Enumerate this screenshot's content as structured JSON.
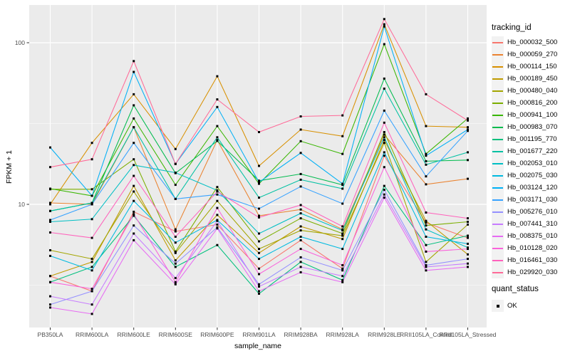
{
  "figure": {
    "background": "#FFFFFF",
    "panel_background": "#EBEBEB",
    "gridline_color": "#FFFFFF",
    "tick_color": "#333333",
    "tick_label_color": "#4D4D4D"
  },
  "chart_data": {
    "type": "line",
    "title": "",
    "xlabel": "sample_name",
    "ylabel": "FPKM + 1",
    "y_scale": "log10",
    "ylim": [
      1.7,
      166
    ],
    "grid": true,
    "legend_position": "right",
    "point_shape": "square",
    "point_color": "#000000",
    "y_ticks": [
      {
        "value": 100,
        "label": "100"
      },
      {
        "value": 10,
        "label": "10"
      }
    ],
    "y_minor_gridlines": [
      31.623,
      3.162
    ],
    "categories": [
      "PB350LA",
      "RRIM600LA",
      "RRIM600LE",
      "RRIM600SE",
      "RRIM600PE",
      "RRIM901LA",
      "RRIM928BA",
      "RRIM928LA",
      "RRIM928LE",
      "RRII105LA_Control",
      "RRII105LA_Stressed"
    ],
    "series": [
      {
        "name": "Hb_000032_500",
        "color": "#F8766D",
        "values": [
          3.6,
          2.9,
          9.0,
          6.8,
          7.5,
          4.0,
          6.0,
          4.0,
          20.0,
          7.7,
          6.2
        ]
      },
      {
        "name": "Hb_000059_270",
        "color": "#EA8331",
        "values": [
          10.2,
          10.0,
          30.0,
          7.0,
          25.0,
          8.5,
          9.3,
          7.0,
          27.0,
          13.3,
          14.4
        ]
      },
      {
        "name": "Hb_000114_150",
        "color": "#D89000",
        "values": [
          10.0,
          24.0,
          48.0,
          22.0,
          62.0,
          17.3,
          29.0,
          26.4,
          130.0,
          30.5,
          30.0
        ]
      },
      {
        "name": "Hb_000189_450",
        "color": "#C09B00",
        "values": [
          3.6,
          4.4,
          13.0,
          4.5,
          8.6,
          5.0,
          7.3,
          6.1,
          25.0,
          7.9,
          4.9
        ]
      },
      {
        "name": "Hb_000480_040",
        "color": "#A3A500",
        "values": [
          5.2,
          4.6,
          12.0,
          5.0,
          10.5,
          5.3,
          6.9,
          6.4,
          24.0,
          4.4,
          7.5
        ]
      },
      {
        "name": "Hb_000816_200",
        "color": "#7CAE00",
        "values": [
          12.4,
          12.4,
          19.0,
          5.1,
          12.8,
          5.9,
          8.2,
          6.6,
          28.0,
          7.4,
          7.8
        ]
      },
      {
        "name": "Hb_000941_100",
        "color": "#39B600",
        "values": [
          12.5,
          11.3,
          34.0,
          13.2,
          30.5,
          13.4,
          24.6,
          20.5,
          98.0,
          20.5,
          34.0
        ]
      },
      {
        "name": "Hb_000983_070",
        "color": "#00BB4E",
        "values": [
          9.1,
          10.2,
          41.0,
          15.6,
          24.7,
          14.0,
          15.4,
          13.2,
          60.0,
          18.5,
          18.8
        ]
      },
      {
        "name": "Hb_001195_770",
        "color": "#00BF7D",
        "values": [
          3.3,
          4.1,
          8.5,
          4.1,
          5.6,
          2.8,
          4.4,
          3.4,
          13.0,
          5.6,
          6.4
        ]
      },
      {
        "name": "Hb_001677_220",
        "color": "#00C1A3",
        "values": [
          9.1,
          10.2,
          30.0,
          10.8,
          26.0,
          11.0,
          14.2,
          12.5,
          52.0,
          17.6,
          21.0
        ]
      },
      {
        "name": "Hb_002053_010",
        "color": "#00BFC4",
        "values": [
          7.8,
          8.1,
          17.5,
          15.7,
          12.2,
          6.6,
          8.8,
          6.9,
          26.0,
          7.0,
          5.4
        ]
      },
      {
        "name": "Hb_002075_030",
        "color": "#00BAE0",
        "values": [
          4.8,
          3.9,
          10.5,
          5.8,
          8.0,
          4.6,
          6.3,
          5.3,
          21.0,
          6.3,
          5.7
        ]
      },
      {
        "name": "Hb_003124_120",
        "color": "#00B0F6",
        "values": [
          22.5,
          11.3,
          66.0,
          17.8,
          40.0,
          13.7,
          20.8,
          13.4,
          126.0,
          20.0,
          29.0
        ]
      },
      {
        "name": "Hb_003171_030",
        "color": "#35A2FF",
        "values": [
          8.0,
          10.0,
          24.0,
          10.8,
          11.5,
          9.4,
          12.9,
          10.1,
          38.0,
          14.9,
          28.5
        ]
      },
      {
        "name": "Hb_005276_010",
        "color": "#9590FF",
        "values": [
          2.4,
          2.9,
          7.4,
          4.3,
          7.2,
          3.2,
          4.7,
          3.9,
          12.3,
          4.2,
          4.6
        ]
      },
      {
        "name": "Hb_007441_310",
        "color": "#C77CFF",
        "values": [
          2.7,
          2.4,
          6.6,
          3.5,
          7.9,
          3.1,
          4.1,
          3.6,
          11.5,
          4.1,
          4.3
        ]
      },
      {
        "name": "Hb_008375_010",
        "color": "#E76BF3",
        "values": [
          2.3,
          2.1,
          6.0,
          3.2,
          7.1,
          2.9,
          3.8,
          3.3,
          11.0,
          3.9,
          4.1
        ]
      },
      {
        "name": "Hb_010128_020",
        "color": "#FA62DB",
        "values": [
          3.3,
          3.0,
          8.7,
          3.3,
          9.5,
          3.7,
          5.3,
          4.2,
          17.0,
          5.1,
          5.3
        ]
      },
      {
        "name": "Hb_016461_030",
        "color": "#FF62BC",
        "values": [
          6.7,
          6.2,
          15.0,
          6.3,
          12.0,
          8.3,
          9.9,
          7.3,
          32.0,
          8.9,
          8.2
        ]
      },
      {
        "name": "Hb_029920_030",
        "color": "#FF6A98",
        "values": [
          17.0,
          19.0,
          77.0,
          17.8,
          44.6,
          28.0,
          35.0,
          35.5,
          140.0,
          48.0,
          33.0
        ]
      }
    ]
  },
  "legend": {
    "tracking_title": "tracking_id",
    "quant_status_title": "quant_status",
    "quant_status_items": [
      "OK"
    ]
  }
}
